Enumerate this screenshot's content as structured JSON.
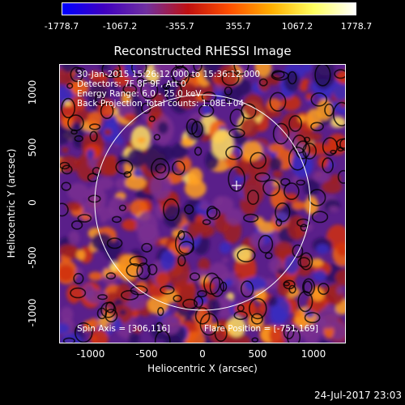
{
  "colorbar": {
    "ticks": [
      "-1778.7",
      "-1067.2",
      "-355.7",
      "355.7",
      "1067.2",
      "1778.7"
    ],
    "colors": [
      "#0000ff",
      "#4000c0",
      "#7030a0",
      "#c01010",
      "#ff5000",
      "#ffb000",
      "#ffff60",
      "#ffffff"
    ]
  },
  "title": "Reconstructed RHESSI Image",
  "info_lines": [
    "30-Jan-2015 15:26:12.000 to 15:36:12.000",
    "Detectors: 7F 8F 9F, Att 0",
    "Energy Range: 6.0 - 25.0 keV",
    "Back Projection    Total counts: 1.08E+04"
  ],
  "spin_axis": "Spin Axis = [306,116]",
  "flare_position": "Flare Position = [-751,169]",
  "x_ticks": [
    "-1000",
    "-500",
    "0",
    "500",
    "1000"
  ],
  "y_ticks": [
    "1000",
    "500",
    "0",
    "-500",
    "-1000"
  ],
  "x_label": "Heliocentric X (arcsec)",
  "y_label": "Heliocentric Y (arcsec)",
  "timestamp": "24-Jul-2017 23:03"
}
